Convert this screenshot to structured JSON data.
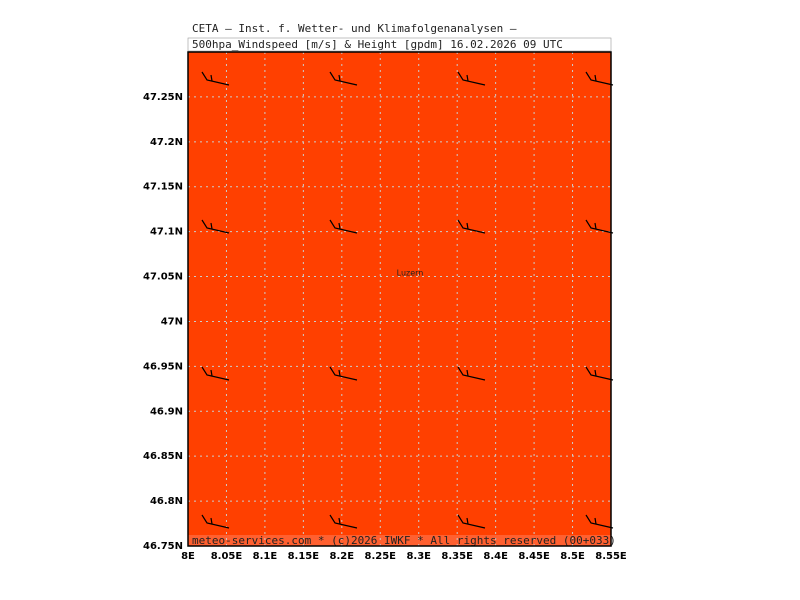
{
  "map": {
    "title": "CETA — Inst. f. Wetter- und Klimafolgenanalysen —",
    "subtitle": "500hpa_Windspeed [m/s] & Height [gpdm] 16.02.2026 09 UTC",
    "place_label": "Luzern",
    "footer": "meteo-services.com * (c)2026 IWKF * All rights reserved (00+033)",
    "fill_color": "#ff4000",
    "xlim": [
      8,
      8.55
    ],
    "ylim": [
      46.75,
      47.3
    ],
    "xticks": [
      {
        "value": 8,
        "label": "8E"
      },
      {
        "value": 8.05,
        "label": "8.05E"
      },
      {
        "value": 8.1,
        "label": "8.1E"
      },
      {
        "value": 8.15,
        "label": "8.15E"
      },
      {
        "value": 8.2,
        "label": "8.2E"
      },
      {
        "value": 8.25,
        "label": "8.25E"
      },
      {
        "value": 8.3,
        "label": "8.3E"
      },
      {
        "value": 8.35,
        "label": "8.35E"
      },
      {
        "value": 8.4,
        "label": "8.4E"
      },
      {
        "value": 8.45,
        "label": "8.45E"
      },
      {
        "value": 8.5,
        "label": "8.5E"
      },
      {
        "value": 8.55,
        "label": "8.55E"
      }
    ],
    "yticks": [
      {
        "value": 46.75,
        "label": "46.75N"
      },
      {
        "value": 46.8,
        "label": "46.8N"
      },
      {
        "value": 46.85,
        "label": "46.85N"
      },
      {
        "value": 46.9,
        "label": "46.9N"
      },
      {
        "value": 46.95,
        "label": "46.95N"
      },
      {
        "value": 47,
        "label": "47N"
      },
      {
        "value": 47.05,
        "label": "47.05N"
      },
      {
        "value": 47.1,
        "label": "47.1N"
      },
      {
        "value": 47.15,
        "label": "47.15N"
      },
      {
        "value": 47.2,
        "label": "47.2N"
      },
      {
        "value": 47.25,
        "label": "47.25N"
      }
    ],
    "grid": true
  }
}
